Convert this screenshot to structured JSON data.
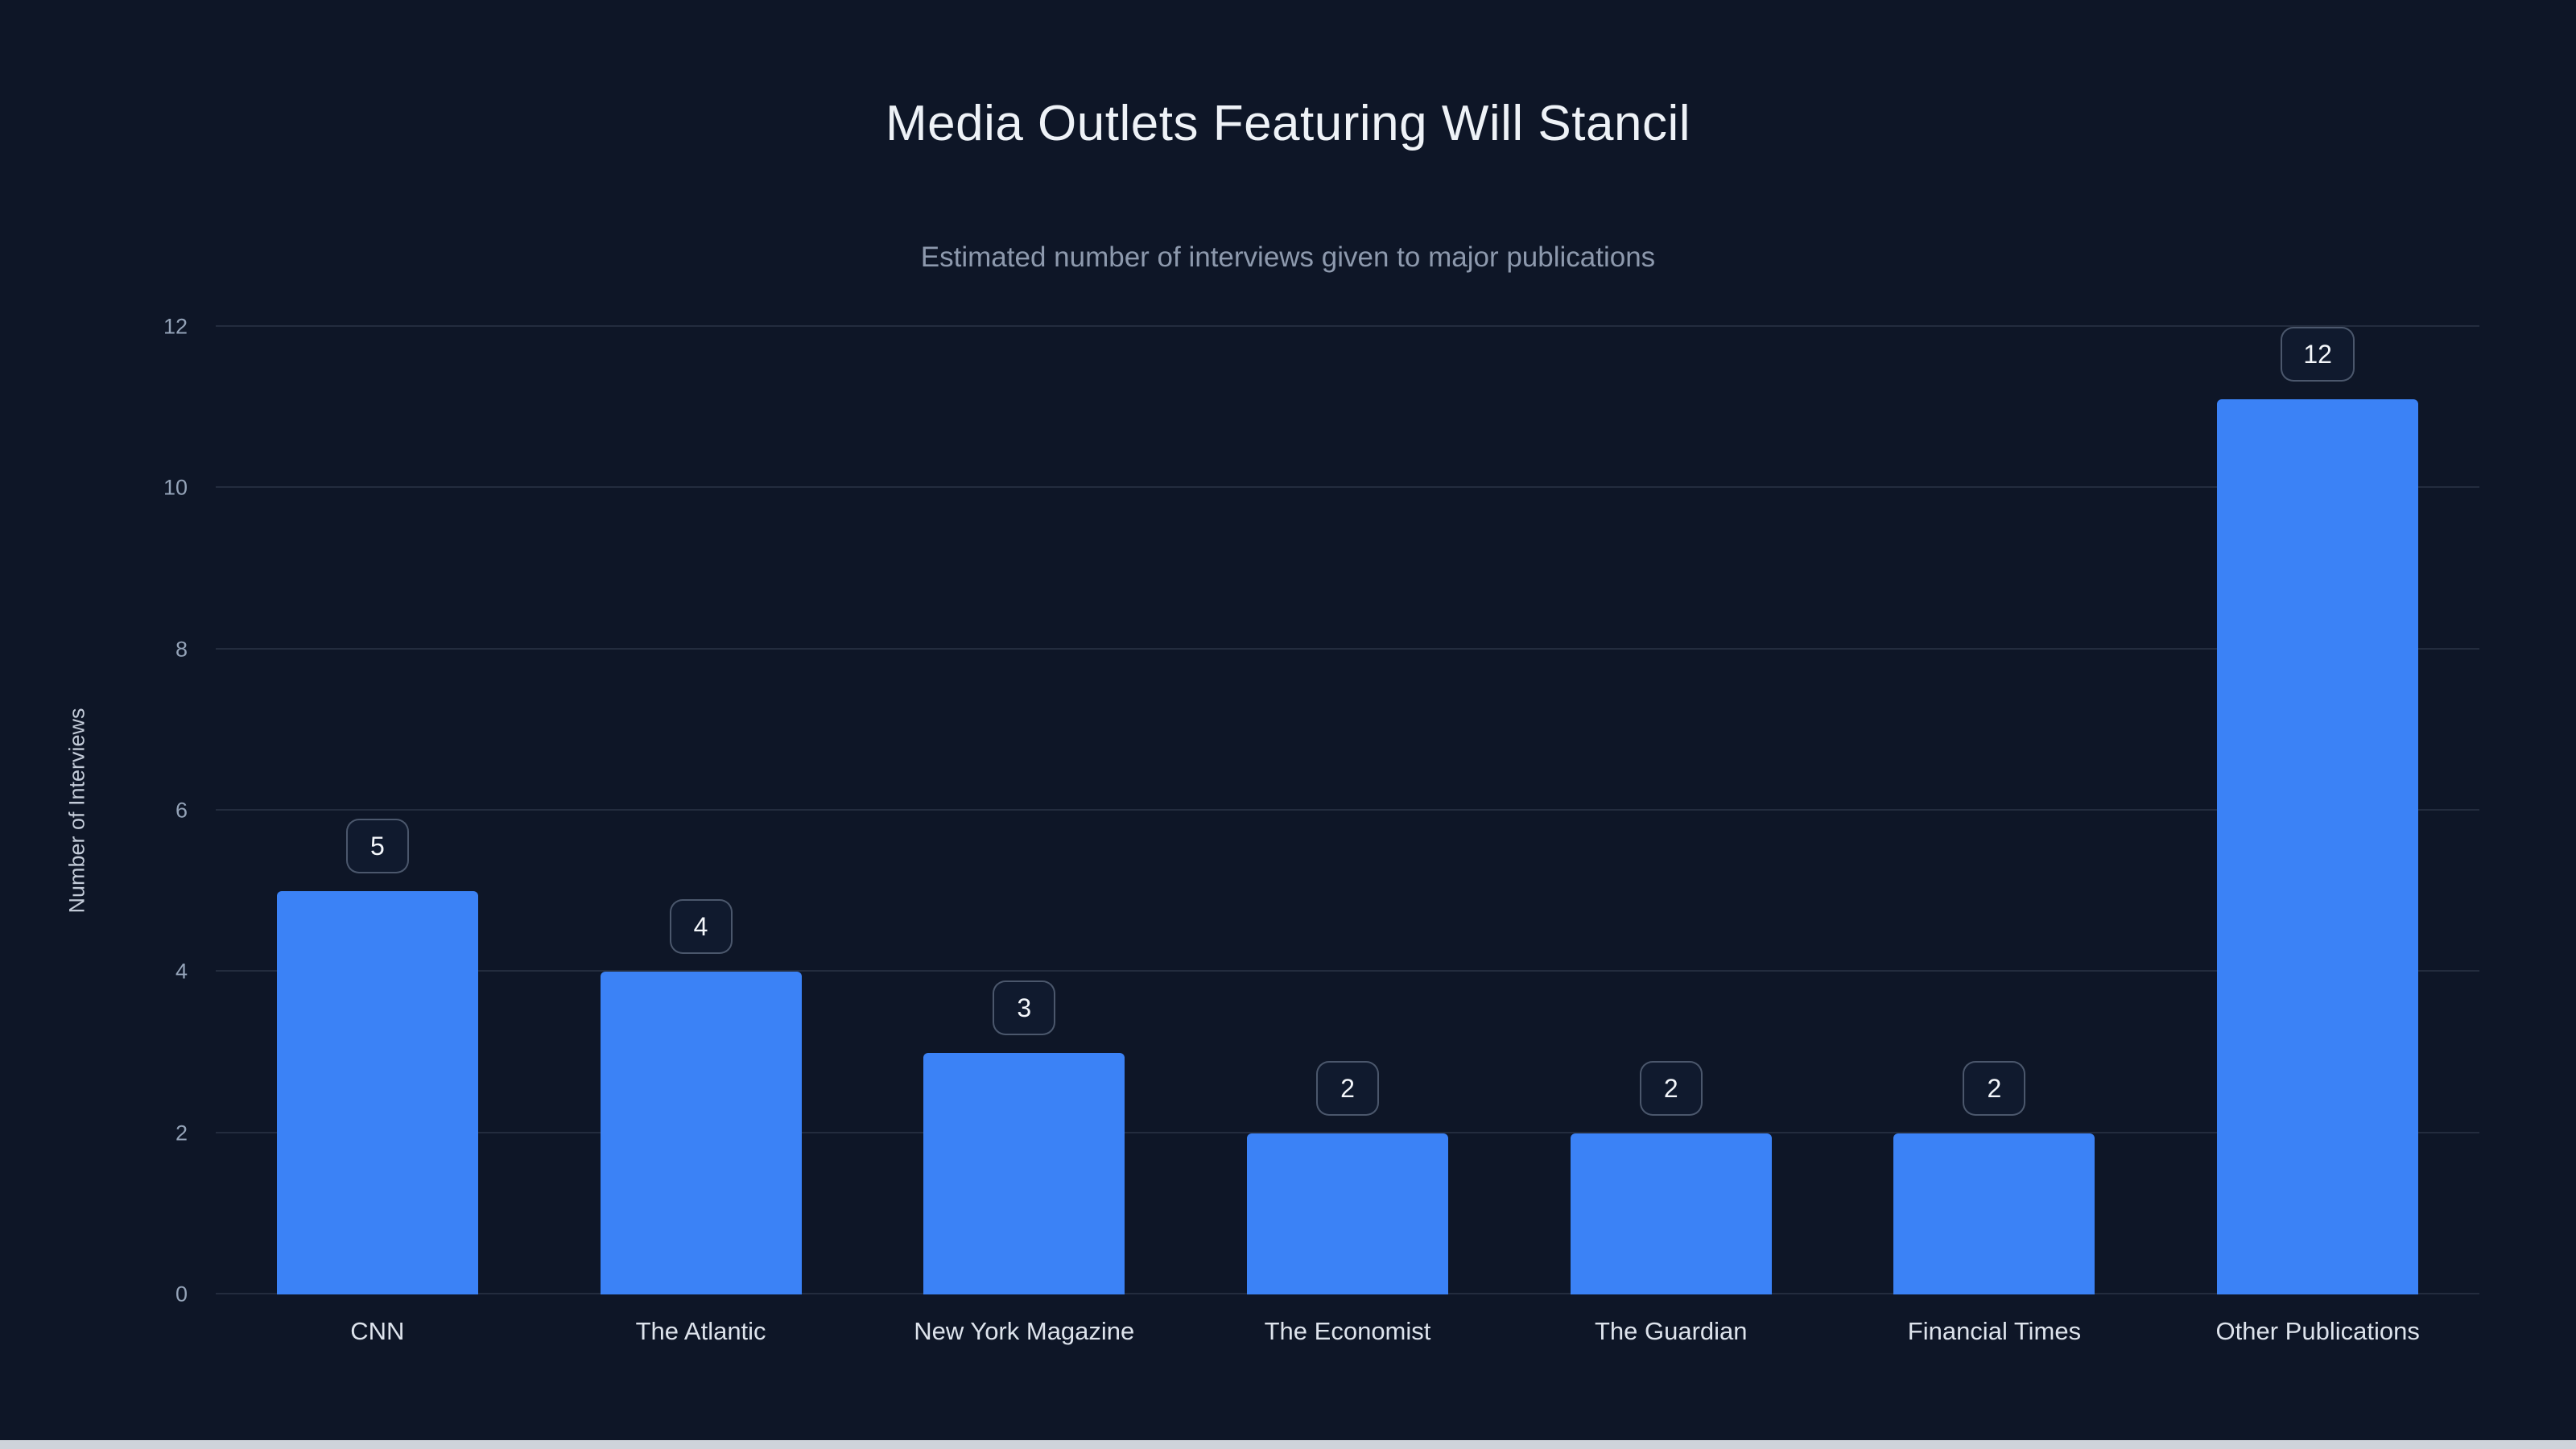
{
  "chart_data": {
    "type": "bar",
    "title": "Media Outlets Featuring Will Stancil",
    "subtitle": "Estimated number of interviews given to major publications",
    "categories": [
      "CNN",
      "The Atlantic",
      "New York Magazine",
      "The Economist",
      "The Guardian",
      "Financial Times",
      "Other Publications"
    ],
    "values": [
      5,
      4,
      3,
      2,
      2,
      2,
      12
    ],
    "xlabel": "",
    "ylabel": "Number of Interviews",
    "ylim": [
      0,
      12
    ],
    "yticks": [
      0,
      2,
      4,
      6,
      8,
      10,
      12
    ],
    "grid": true,
    "legend": "none",
    "value_labels": true,
    "colors": {
      "bar": "#3b82f6",
      "background": "#0e1627",
      "gridline": "rgba(148,163,184,0.16)",
      "title_text": "#eef2f7",
      "subtitle_text": "#8d99ad",
      "tick_text": "#94a3b8",
      "category_text": "#dde3ec",
      "badge_border": "rgba(148,163,184,0.45)"
    }
  }
}
